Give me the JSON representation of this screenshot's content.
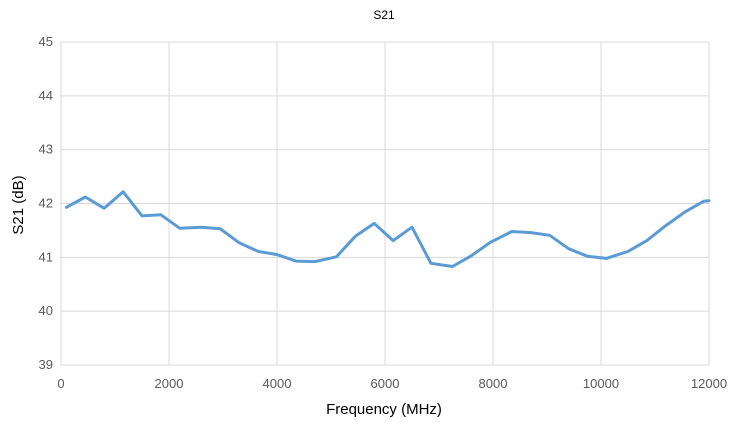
{
  "chart_data": {
    "type": "line",
    "title": "S21",
    "xlabel": "Frequency (MHz)",
    "ylabel": "S21 (dB)",
    "xlim": [
      0,
      12000
    ],
    "ylim": [
      39,
      45
    ],
    "xticks": [
      0,
      2000,
      4000,
      6000,
      8000,
      10000,
      12000
    ],
    "yticks": [
      39,
      40,
      41,
      42,
      43,
      44,
      45
    ],
    "grid": true,
    "legend": "none",
    "series": [
      {
        "color": "#5B9BD5",
        "x": [
          100,
          450,
          800,
          1150,
          1500,
          1850,
          2200,
          2600,
          2950,
          3300,
          3650,
          4000,
          4350,
          4700,
          5100,
          5450,
          5800,
          6150,
          6500,
          6850,
          7250,
          7600,
          7950,
          8350,
          8700,
          9050,
          9400,
          9750,
          10100,
          10500,
          10850,
          11200,
          11550,
          11900,
          12000
        ],
        "y": [
          41.93,
          42.12,
          41.91,
          42.22,
          41.77,
          41.79,
          41.54,
          41.56,
          41.53,
          41.27,
          41.11,
          41.05,
          40.93,
          40.92,
          41.01,
          41.39,
          41.63,
          41.31,
          41.56,
          40.89,
          40.83,
          41.03,
          41.28,
          41.48,
          41.46,
          41.41,
          41.16,
          41.02,
          40.98,
          41.11,
          41.31,
          41.59,
          41.84,
          42.04,
          42.05
        ]
      }
    ]
  }
}
